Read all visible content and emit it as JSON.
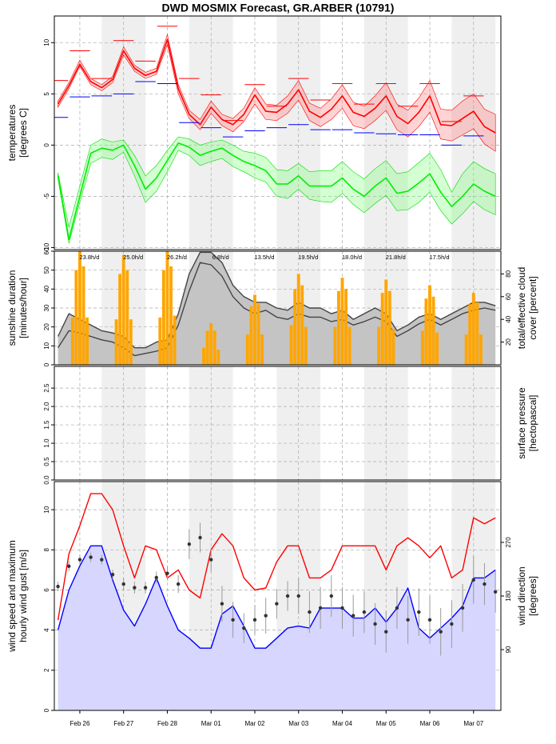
{
  "chart_data": [
    {
      "type": "line",
      "title": "DWD MOSMIX Forecast, GR.ARBER (10791)",
      "ylabel": [
        "temperatures",
        "[degrees C]"
      ],
      "xlim": [
        -2,
        243
      ],
      "ylim": [
        -10.2,
        12.6
      ],
      "yticks": [
        -10,
        -5,
        0,
        5,
        10
      ],
      "grid": true,
      "x": [
        0,
        6,
        12,
        18,
        24,
        30,
        36,
        42,
        48,
        54,
        60,
        66,
        72,
        78,
        84,
        90,
        96,
        102,
        108,
        114,
        120,
        126,
        132,
        138,
        144,
        150,
        156,
        162,
        168,
        174,
        180,
        186,
        192,
        198,
        204,
        210,
        216,
        222,
        228,
        234,
        240
      ],
      "series": [
        {
          "type": "band",
          "color": "#ff0000",
          "fill": "#ff8080",
          "high": [
            4.3,
            6.1,
            8.3,
            6.5,
            5.9,
            6.7,
            9.6,
            7.8,
            7.1,
            7.5,
            10.8,
            5.9,
            3.4,
            2.5,
            4.3,
            3.0,
            2.6,
            3.6,
            5.6,
            4.0,
            3.9,
            4.8,
            6.3,
            4.1,
            3.6,
            4.5,
            5.9,
            4.2,
            3.8,
            4.8,
            6.1,
            4.0,
            3.4,
            4.6,
            6.3,
            3.5,
            3.4,
            4.3,
            5.0,
            3.5,
            3.0
          ],
          "low": [
            3.7,
            5.5,
            7.7,
            5.9,
            5.3,
            6.1,
            8.8,
            7.2,
            6.5,
            6.9,
            9.8,
            5.0,
            2.6,
            1.5,
            3.1,
            1.9,
            1.3,
            2.3,
            4.0,
            2.5,
            2.4,
            3.1,
            4.4,
            2.4,
            1.8,
            2.5,
            3.6,
            1.9,
            1.6,
            2.4,
            3.4,
            1.5,
            0.8,
            1.8,
            3.2,
            0.6,
            0.4,
            1.0,
            1.6,
            0.1,
            -0.6
          ]
        },
        {
          "type": "band",
          "color": "#00dd00",
          "fill": "#80ff80",
          "high": [
            -2.7,
            -8.0,
            -4.0,
            0.0,
            0.6,
            0.3,
            0.5,
            -1.0,
            -3.0,
            -2.0,
            -0.5,
            0.8,
            0.6,
            0.0,
            0.3,
            0.5,
            0.0,
            -0.6,
            -0.8,
            -1.2,
            -2.4,
            -2.5,
            -1.8,
            -2.6,
            -2.5,
            -2.5,
            -1.6,
            -2.6,
            -3.3,
            -2.3,
            -1.5,
            -2.8,
            -2.6,
            -1.7,
            -0.8,
            -2.4,
            -4.6,
            -2.8,
            -1.6,
            -2.3,
            -2.8
          ],
          "low": [
            -3.3,
            -9.6,
            -5.6,
            -1.8,
            -1.2,
            -1.4,
            -0.7,
            -3.0,
            -5.6,
            -4.5,
            -2.6,
            -0.5,
            -1.0,
            -2.0,
            -1.6,
            -1.3,
            -2.1,
            -2.6,
            -3.2,
            -3.6,
            -5.0,
            -5.2,
            -4.3,
            -5.3,
            -5.5,
            -5.6,
            -4.7,
            -5.8,
            -6.6,
            -5.7,
            -4.9,
            -6.4,
            -6.3,
            -5.6,
            -4.6,
            -6.4,
            -7.7,
            -6.7,
            -5.5,
            -6.3,
            -6.8
          ]
        },
        {
          "type": "line",
          "color": "#ff0000",
          "values": [
            4.0,
            5.8,
            7.9,
            6.2,
            5.6,
            6.4,
            9.2,
            7.5,
            6.8,
            7.2,
            10.3,
            5.5,
            3.0,
            2.0,
            3.7,
            2.5,
            2.0,
            3.0,
            4.9,
            3.3,
            3.2,
            4.0,
            5.4,
            3.3,
            2.7,
            3.5,
            4.8,
            3.2,
            2.8,
            3.6,
            4.8,
            2.8,
            2.1,
            3.2,
            4.8,
            2.0,
            1.9,
            2.6,
            3.3,
            1.8,
            1.2
          ]
        },
        {
          "type": "line",
          "color": "#00ee00",
          "values": [
            -3.0,
            -9.2,
            -5.0,
            -0.8,
            -0.3,
            -0.5,
            0.0,
            -2.0,
            -4.3,
            -3.2,
            -1.5,
            0.2,
            -0.2,
            -1.0,
            -0.6,
            -0.3,
            -1.0,
            -1.6,
            -2.0,
            -2.5,
            -3.8,
            -3.8,
            -3.0,
            -4.0,
            -4.0,
            -4.0,
            -3.2,
            -4.3,
            -5.0,
            -4.0,
            -3.2,
            -4.7,
            -4.5,
            -3.7,
            -2.8,
            -4.6,
            -6.0,
            -5.0,
            -3.8,
            -4.5,
            -5.0
          ]
        },
        {
          "type": "segment",
          "color": "#ff0000",
          "x": [
            -6,
            6,
            18,
            30,
            42,
            54,
            66,
            78,
            90,
            102,
            114,
            126,
            138,
            150,
            162,
            174,
            186,
            198,
            210,
            222
          ],
          "values": [
            6.3,
            9.2,
            6.5,
            10.2,
            8.2,
            11.6,
            6.5,
            4.9,
            2.4,
            5.9,
            3.8,
            6.5,
            4.4,
            6.0,
            4.0,
            6.0,
            3.8,
            6.0,
            2.3,
            4.8
          ]
        },
        {
          "type": "segment",
          "color": "#0000ff",
          "x": [
            -6,
            6,
            18,
            30,
            42,
            54,
            66,
            78,
            90,
            102,
            114,
            126,
            138,
            150,
            162,
            174,
            186,
            198,
            210,
            222
          ],
          "values": [
            2.7,
            4.7,
            4.8,
            5.0,
            6.2,
            6.0,
            2.2,
            1.7,
            0.8,
            1.4,
            1.7,
            2.0,
            1.5,
            1.5,
            1.2,
            1.1,
            1.0,
            1.0,
            0.0,
            0.9
          ]
        }
      ]
    },
    {
      "type": "bar",
      "ylabel": [
        "sunshine duration",
        "[minutes/hour]"
      ],
      "y2label": [
        "total/effective cloud",
        "cover [percent]"
      ],
      "xlim": [
        -2,
        243
      ],
      "ylim": [
        0,
        60
      ],
      "yticks": [
        0,
        10,
        20,
        30,
        40,
        50,
        60
      ],
      "y2lim": [
        0,
        100
      ],
      "y2ticks": [
        20,
        40,
        60,
        80
      ],
      "grid": true,
      "daily_labels": [
        "23.8h/d",
        "25.0h/d",
        "26.2h/d",
        "6.8h/d",
        "13.5h/d",
        "19.5h/d",
        "18.0h/d",
        "21.8h/d",
        "17.5h/d"
      ],
      "x": [
        0,
        6,
        12,
        18,
        24,
        30,
        36,
        42,
        48,
        54,
        60,
        66,
        72,
        78,
        84,
        90,
        96,
        102,
        108,
        114,
        120,
        126,
        132,
        138,
        144,
        150,
        156,
        162,
        168,
        174,
        180,
        186,
        192,
        198,
        204,
        210,
        216,
        222,
        228,
        234,
        240
      ],
      "series": [
        {
          "type": "area",
          "axis": "y2",
          "color": "#444444",
          "fill": "#c4c4c4",
          "values": [
            25,
            45,
            40,
            35,
            30,
            28,
            25,
            15,
            15,
            20,
            22,
            45,
            80,
            99,
            99,
            90,
            70,
            60,
            55,
            55,
            50,
            48,
            55,
            50,
            50,
            45,
            48,
            40,
            45,
            50,
            45,
            30,
            35,
            42,
            45,
            40,
            45,
            50,
            55,
            55,
            52
          ]
        },
        {
          "type": "line",
          "axis": "y2",
          "color": "#444444",
          "values": [
            15,
            30,
            28,
            25,
            22,
            20,
            15,
            8,
            10,
            12,
            15,
            35,
            65,
            90,
            88,
            78,
            60,
            50,
            45,
            48,
            42,
            40,
            45,
            42,
            42,
            38,
            40,
            35,
            38,
            42,
            38,
            25,
            30,
            36,
            40,
            35,
            40,
            45,
            48,
            50,
            48
          ]
        },
        {
          "type": "bar",
          "color": "#ffa500",
          "x": [
            8,
            10,
            12,
            14,
            16,
            32,
            34,
            36,
            38,
            40,
            56,
            58,
            60,
            62,
            64,
            80,
            82,
            84,
            86,
            88,
            104,
            106,
            108,
            110,
            112,
            128,
            130,
            132,
            134,
            136,
            152,
            154,
            156,
            158,
            160,
            176,
            178,
            180,
            182,
            184,
            200,
            202,
            204,
            206,
            208,
            224,
            226,
            228,
            230,
            232
          ],
          "values": [
            25,
            50,
            60,
            52,
            25,
            24,
            48,
            58,
            50,
            24,
            25,
            50,
            60,
            52,
            26,
            9,
            18,
            22,
            18,
            8,
            16,
            31,
            37,
            32,
            16,
            21,
            40,
            48,
            42,
            20,
            20,
            39,
            46,
            40,
            20,
            20,
            38,
            45,
            39,
            19,
            18,
            35,
            42,
            36,
            17,
            16,
            32,
            38,
            33,
            16
          ]
        }
      ]
    },
    {
      "type": "line",
      "y2label": [
        "surface pressure",
        "[hectopascal]"
      ],
      "xlim": [
        -2,
        243
      ],
      "ylim": [
        0,
        3.09
      ],
      "grid": true,
      "yticks": [
        {
          "value": 0,
          "label": "0.0"
        },
        {
          "value": 0.5,
          "label": "0.5"
        },
        {
          "value": 1,
          "label": "1.0"
        },
        {
          "value": 1.5,
          "label": "1.5"
        },
        {
          "value": 2,
          "label": "2.0"
        },
        {
          "value": 2.5,
          "label": "2.5"
        }
      ],
      "series": []
    },
    {
      "type": "line",
      "ylabel": [
        "wind speed and maximum",
        "hourly wind gust [m/s]"
      ],
      "y2label": [
        "wind direction",
        "[degrees]"
      ],
      "xlim": [
        -2,
        243
      ],
      "ylim": [
        0,
        11.4
      ],
      "yticks": [
        0,
        2,
        4,
        6,
        8,
        10
      ],
      "y2lim": [
        -12,
        372
      ],
      "y2ticks": [
        90,
        180,
        270
      ],
      "grid": true,
      "xticks": [
        {
          "value": 12,
          "label": "Feb 26"
        },
        {
          "value": 36,
          "label": "Feb 27"
        },
        {
          "value": 60,
          "label": "Feb 28"
        },
        {
          "value": 84,
          "label": "Mar 01"
        },
        {
          "value": 108,
          "label": "Mar 02"
        },
        {
          "value": 132,
          "label": "Mar 03"
        },
        {
          "value": 156,
          "label": "Mar 04"
        },
        {
          "value": 180,
          "label": "Mar 05"
        },
        {
          "value": 204,
          "label": "Mar 06"
        },
        {
          "value": 228,
          "label": "Mar 07"
        }
      ],
      "x": [
        0,
        6,
        12,
        18,
        24,
        30,
        36,
        42,
        48,
        54,
        60,
        66,
        72,
        78,
        84,
        90,
        96,
        102,
        108,
        114,
        120,
        126,
        132,
        138,
        144,
        150,
        156,
        162,
        168,
        174,
        180,
        186,
        192,
        198,
        204,
        210,
        216,
        222,
        228,
        234,
        240
      ],
      "series": [
        {
          "type": "area",
          "color": "#0000ff",
          "fill": "#d6d6ff",
          "values": [
            4.0,
            6.0,
            7.2,
            8.2,
            8.2,
            6.5,
            5.0,
            4.2,
            5.3,
            6.6,
            5.2,
            4.0,
            3.6,
            3.1,
            3.1,
            4.8,
            5.2,
            4.2,
            3.1,
            3.1,
            3.6,
            4.1,
            4.2,
            4.1,
            5.1,
            5.1,
            5.1,
            4.6,
            4.6,
            5.1,
            4.4,
            5.1,
            6.1,
            4.1,
            3.6,
            4.1,
            4.6,
            5.2,
            6.6,
            6.6,
            7.0
          ]
        },
        {
          "type": "line",
          "color": "#ff0000",
          "values": [
            4.5,
            7.8,
            9.2,
            10.8,
            10.8,
            10.0,
            8.2,
            6.6,
            8.2,
            8.0,
            6.6,
            7.0,
            6.0,
            5.6,
            8.0,
            8.8,
            8.2,
            6.6,
            6.0,
            6.1,
            7.4,
            8.2,
            8.2,
            6.6,
            6.6,
            7.0,
            8.2,
            8.2,
            8.2,
            8.2,
            7.0,
            8.2,
            8.6,
            8.2,
            7.6,
            8.2,
            6.6,
            7.0,
            9.6,
            9.3,
            9.6
          ]
        },
        {
          "type": "scatter",
          "axis": "y2",
          "color": "#333333",
          "error_color": "#9a9a9a",
          "values": [
            196,
            230,
            241,
            245,
            241,
            216,
            200,
            194,
            194,
            211,
            218,
            200,
            267,
            278,
            241,
            167,
            140,
            126,
            140,
            147,
            167,
            180,
            180,
            153,
            160,
            180,
            160,
            147,
            153,
            133,
            120,
            160,
            140,
            153,
            140,
            120,
            133,
            160,
            207,
            200,
            187
          ],
          "errors": [
            8,
            8,
            8,
            8,
            8,
            8,
            10,
            10,
            10,
            10,
            12,
            15,
            25,
            25,
            20,
            30,
            30,
            25,
            25,
            30,
            25,
            25,
            30,
            35,
            35,
            35,
            35,
            35,
            35,
            35,
            35,
            35,
            40,
            40,
            40,
            40,
            40,
            40,
            40,
            35,
            35
          ]
        }
      ]
    }
  ]
}
